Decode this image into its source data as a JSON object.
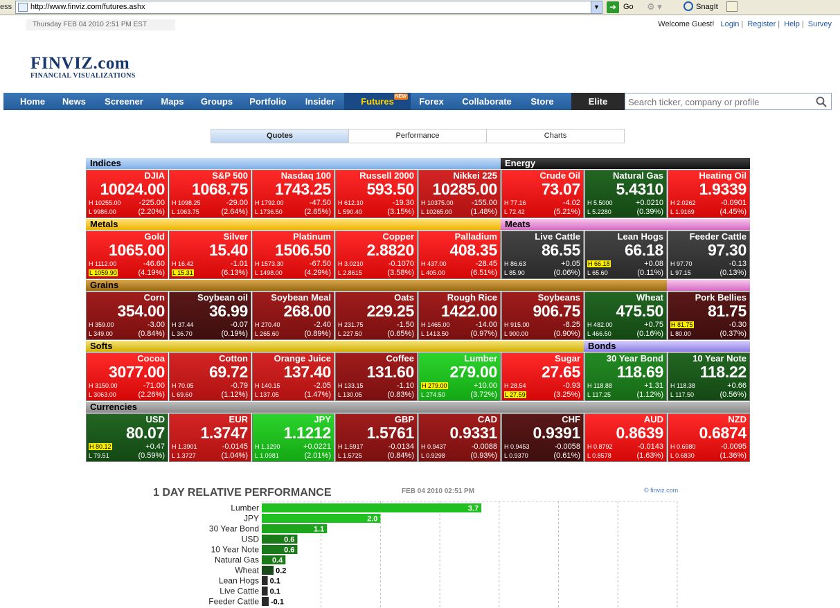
{
  "browser": {
    "address_label": "ess",
    "url": "http://www.finviz.com/futures.ashx",
    "go_label": "Go",
    "snagit_label": "SnagIt"
  },
  "header": {
    "date": "Thursday FEB 04 2010 2:51 PM EST",
    "welcome": "Welcome Guest!",
    "links": [
      "Login",
      "Register",
      "Help",
      "Survey"
    ],
    "logo": "FINVIZ.com",
    "logo_sub": "FINANCIAL VISUALIZATIONS"
  },
  "nav": {
    "items": [
      "Home",
      "News",
      "Screener",
      "Maps",
      "Groups",
      "Portfolio",
      "Insider",
      "Futures",
      "Forex",
      "Collaborate",
      "Store",
      "Elite"
    ],
    "new_badge": "NEW",
    "search_placeholder": "Search ticker, company or profile"
  },
  "tabs": [
    "Quotes",
    "Performance",
    "Charts"
  ],
  "colors": {
    "neg_strong": "#e01010",
    "neg_mid": "#c41818",
    "neg_weak": "#8a1414",
    "neg_dark": "#4d1212",
    "neutral": "#3a3a3a",
    "pos_weak": "#1b5a1b",
    "pos_mid": "#1d7a1d",
    "pos_strong": "#20b820"
  },
  "sectors": [
    {
      "name": "Indices"
    },
    {
      "name": "Energy"
    },
    {
      "name": "Metals"
    },
    {
      "name": "Meats"
    },
    {
      "name": "Grains"
    },
    {
      "name": "Softs"
    },
    {
      "name": "Bonds"
    },
    {
      "name": "Currencies"
    }
  ],
  "tiles": [
    {
      "name": "DJIA",
      "price": "10024.00",
      "high": "H 10255.00",
      "low": "L 9986.00",
      "change": "-225.00",
      "pct": "(2.20%)",
      "color": "neg_strong"
    },
    {
      "name": "S&P 500",
      "price": "1068.75",
      "high": "H 1098.25",
      "low": "L 1063.75",
      "change": "-29.00",
      "pct": "(2.64%)",
      "color": "neg_strong"
    },
    {
      "name": "Nasdaq 100",
      "price": "1743.25",
      "high": "H 1792.00",
      "low": "L 1736.50",
      "change": "-47.50",
      "pct": "(2.65%)",
      "color": "neg_strong"
    },
    {
      "name": "Russell 2000",
      "price": "593.50",
      "high": "H 612.10",
      "low": "L 590.40",
      "change": "-19.30",
      "pct": "(3.15%)",
      "color": "neg_strong"
    },
    {
      "name": "Nikkei 225",
      "price": "10285.00",
      "high": "H 10375.00",
      "low": "L 10265.00",
      "change": "-155.00",
      "pct": "(1.48%)",
      "color": "neg_mid"
    },
    {
      "name": "Crude Oil",
      "price": "73.07",
      "high": "H 77.16",
      "low": "L 72.42",
      "change": "-4.02",
      "pct": "(5.21%)",
      "color": "neg_strong"
    },
    {
      "name": "Natural Gas",
      "price": "5.4310",
      "high": "H 5.5000",
      "low": "L 5.2280",
      "change": "+0.0210",
      "pct": "(0.39%)",
      "color": "pos_weak"
    },
    {
      "name": "Heating Oil",
      "price": "1.9339",
      "high": "H 2.0262",
      "low": "L 1.9169",
      "change": "-0.0901",
      "pct": "(4.45%)",
      "color": "neg_strong"
    },
    {
      "name": "Gold",
      "price": "1065.00",
      "high": "H 1112.00",
      "low": "L 1059.90",
      "change": "-46.60",
      "pct": "(4.19%)",
      "color": "neg_strong",
      "low_hl": true
    },
    {
      "name": "Silver",
      "price": "15.40",
      "high": "H 16.42",
      "low": "L 15.31",
      "change": "-1.01",
      "pct": "(6.13%)",
      "color": "neg_strong",
      "low_hl": true
    },
    {
      "name": "Platinum",
      "price": "1506.50",
      "high": "H 1573.30",
      "low": "L 1498.00",
      "change": "-67.50",
      "pct": "(4.29%)",
      "color": "neg_strong"
    },
    {
      "name": "Copper",
      "price": "2.8820",
      "high": "H 3.0210",
      "low": "L 2.8615",
      "change": "-0.1070",
      "pct": "(3.58%)",
      "color": "neg_strong"
    },
    {
      "name": "Palladium",
      "price": "408.35",
      "high": "H 437.00",
      "low": "L 405.00",
      "change": "-28.45",
      "pct": "(6.51%)",
      "color": "neg_strong"
    },
    {
      "name": "Live Cattle",
      "price": "86.55",
      "high": "H 86.63",
      "low": "L 85.90",
      "change": "+0.05",
      "pct": "(0.06%)",
      "color": "neutral"
    },
    {
      "name": "Lean Hogs",
      "price": "66.18",
      "high": "H 66.18",
      "low": "L 65.60",
      "change": "+0.08",
      "pct": "(0.11%)",
      "color": "neutral",
      "high_hl": true
    },
    {
      "name": "Feeder Cattle",
      "price": "97.30",
      "high": "H 97.70",
      "low": "L 97.15",
      "change": "-0.13",
      "pct": "(0.13%)",
      "color": "neutral"
    },
    {
      "name": "Corn",
      "price": "354.00",
      "high": "H 359.00",
      "low": "L 349.00",
      "change": "-3.00",
      "pct": "(0.84%)",
      "color": "neg_weak"
    },
    {
      "name": "Soybean oil",
      "price": "36.99",
      "high": "H 37.44",
      "low": "L 36.70",
      "change": "-0.07",
      "pct": "(0.19%)",
      "color": "neg_dark"
    },
    {
      "name": "Soybean Meal",
      "price": "268.00",
      "high": "H 270.40",
      "low": "L 265.60",
      "change": "-2.40",
      "pct": "(0.89%)",
      "color": "neg_weak"
    },
    {
      "name": "Oats",
      "price": "229.25",
      "high": "H 231.75",
      "low": "L 227.50",
      "change": "-1.50",
      "pct": "(0.65%)",
      "color": "neg_weak"
    },
    {
      "name": "Rough Rice",
      "price": "1422.00",
      "high": "H 1465.00",
      "low": "L 1413.50",
      "change": "-14.00",
      "pct": "(0.97%)",
      "color": "neg_weak"
    },
    {
      "name": "Soybeans",
      "price": "906.75",
      "high": "H 915.00",
      "low": "L 900.00",
      "change": "-8.25",
      "pct": "(0.90%)",
      "color": "neg_weak"
    },
    {
      "name": "Wheat",
      "price": "475.50",
      "high": "H 482.00",
      "low": "L 466.50",
      "change": "+0.75",
      "pct": "(0.16%)",
      "color": "pos_weak"
    },
    {
      "name": "Pork Bellies",
      "price": "81.75",
      "high": "H 81.75",
      "low": "L 80.00",
      "change": "-0.30",
      "pct": "(0.37%)",
      "color": "neg_dark",
      "high_hl": true
    },
    {
      "name": "Cocoa",
      "price": "3077.00",
      "high": "H 3150.00",
      "low": "L 3063.00",
      "change": "-71.00",
      "pct": "(2.26%)",
      "color": "neg_strong"
    },
    {
      "name": "Cotton",
      "price": "69.72",
      "high": "H 70.05",
      "low": "L 69.60",
      "change": "-0.79",
      "pct": "(1.12%)",
      "color": "neg_mid"
    },
    {
      "name": "Orange Juice",
      "price": "137.40",
      "high": "H 140.15",
      "low": "L 137.05",
      "change": "-2.05",
      "pct": "(1.47%)",
      "color": "neg_mid"
    },
    {
      "name": "Coffee",
      "price": "131.60",
      "high": "H 133.15",
      "low": "L 130.05",
      "change": "-1.10",
      "pct": "(0.83%)",
      "color": "neg_weak"
    },
    {
      "name": "Lumber",
      "price": "279.00",
      "high": "H 279.00",
      "low": "L 274.50",
      "change": "+10.00",
      "pct": "(3.72%)",
      "color": "pos_strong",
      "high_hl": true
    },
    {
      "name": "Sugar",
      "price": "27.65",
      "high": "H 28.54",
      "low": "L 27.59",
      "change": "-0.93",
      "pct": "(3.25%)",
      "color": "neg_strong",
      "low_hl": true
    },
    {
      "name": "30 Year Bond",
      "price": "118.69",
      "high": "H 118.88",
      "low": "L 117.25",
      "change": "+1.31",
      "pct": "(1.12%)",
      "color": "pos_mid"
    },
    {
      "name": "10 Year Note",
      "price": "118.22",
      "high": "H 118.38",
      "low": "L 117.50",
      "change": "+0.66",
      "pct": "(0.56%)",
      "color": "pos_weak"
    },
    {
      "name": "USD",
      "price": "80.07",
      "high": "H 80.12",
      "low": "L 79.51",
      "change": "+0.47",
      "pct": "(0.59%)",
      "color": "pos_weak",
      "high_hl": true
    },
    {
      "name": "EUR",
      "price": "1.3747",
      "high": "H 1.3901",
      "low": "L 1.3727",
      "change": "-0.0145",
      "pct": "(1.04%)",
      "color": "neg_mid"
    },
    {
      "name": "JPY",
      "price": "1.1212",
      "high": "H 1.1290",
      "low": "L 1.0981",
      "change": "+0.0221",
      "pct": "(2.01%)",
      "color": "pos_strong"
    },
    {
      "name": "GBP",
      "price": "1.5761",
      "high": "H 1.5917",
      "low": "L 1.5725",
      "change": "-0.0134",
      "pct": "(0.84%)",
      "color": "neg_weak"
    },
    {
      "name": "CAD",
      "price": "0.9331",
      "high": "H 0.9437",
      "low": "L 0.9298",
      "change": "-0.0088",
      "pct": "(0.93%)",
      "color": "neg_weak"
    },
    {
      "name": "CHF",
      "price": "0.9391",
      "high": "H 0.9453",
      "low": "L 0.9370",
      "change": "-0.0058",
      "pct": "(0.61%)",
      "color": "neg_dark"
    },
    {
      "name": "AUD",
      "price": "0.8639",
      "high": "H 0.8792",
      "low": "L 0.8578",
      "change": "-0.0143",
      "pct": "(1.63%)",
      "color": "neg_strong"
    },
    {
      "name": "NZD",
      "price": "0.6874",
      "high": "H 0.6980",
      "low": "L 0.6830",
      "change": "-0.0095",
      "pct": "(1.36%)",
      "color": "neg_strong"
    }
  ],
  "chart_data": {
    "type": "bar",
    "orientation": "horizontal",
    "title": "1 DAY RELATIVE PERFORMANCE",
    "date": "FEB 04 2010 02:51 PM",
    "brand": "finviz.com",
    "categories": [
      "Lumber",
      "JPY",
      "30 Year Bond",
      "USD",
      "10 Year Note",
      "Natural Gas",
      "Wheat",
      "Lean Hogs",
      "Live Cattle",
      "Feeder Cattle"
    ],
    "values": [
      3.7,
      2.0,
      1.1,
      0.6,
      0.6,
      0.4,
      0.2,
      0.1,
      0.1,
      -0.1
    ],
    "labels": [
      "3.7",
      "2.0",
      "1.1",
      "0.6",
      "0.6",
      "0.4",
      "0.2",
      "0.1",
      "0.1",
      "-0.1"
    ],
    "xlim": [
      0,
      7
    ],
    "grid": true
  }
}
